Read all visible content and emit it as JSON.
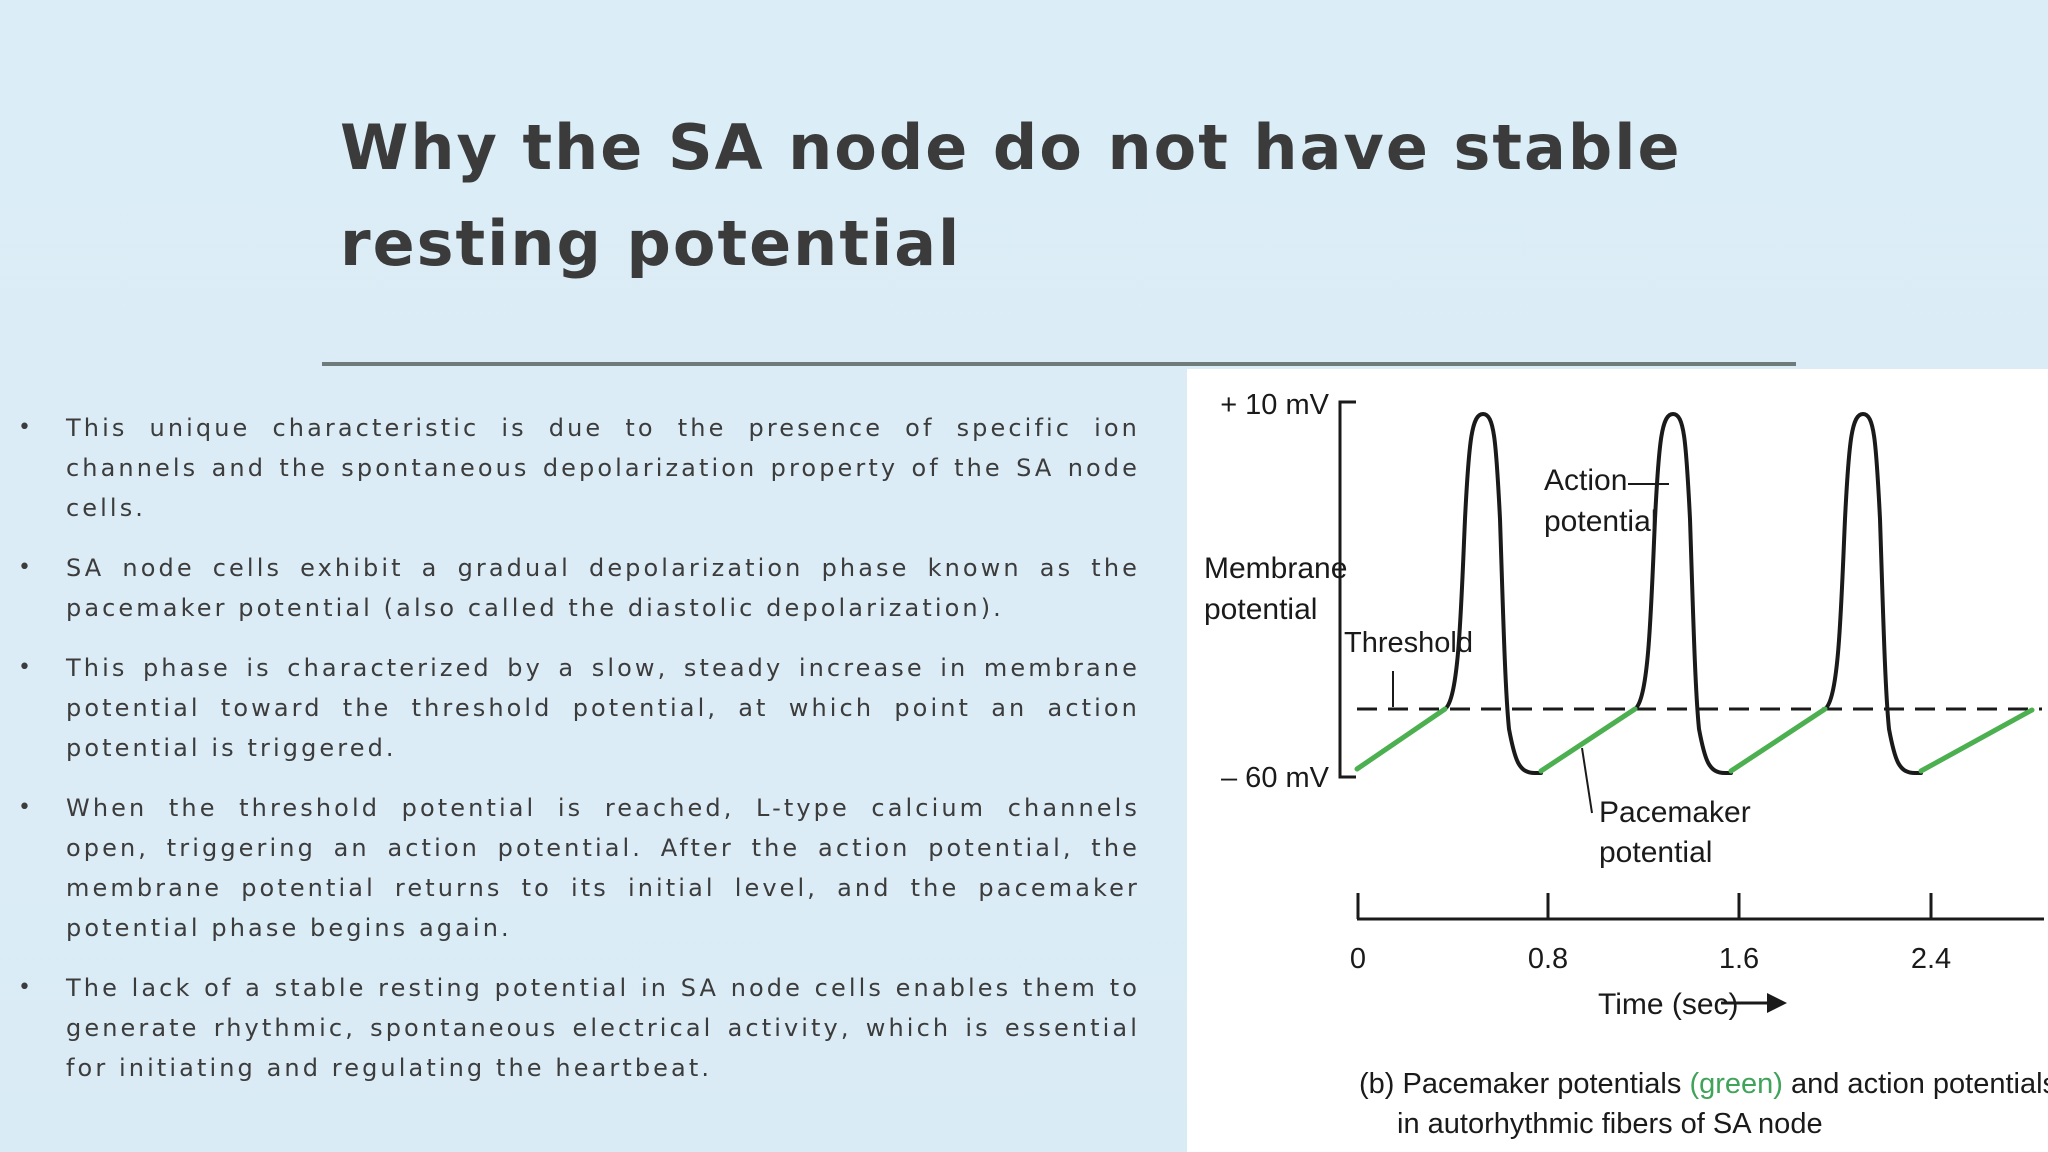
{
  "slide": {
    "title": "Why the SA node do not have stable resting potential",
    "bullets": [
      "This unique characteristic is due to the presence of specific ion channels and the spontaneous depolarization property of the SA node cells.",
      "SA node cells exhibit a gradual depolarization phase known as the pacemaker potential (also called the diastolic depolarization).",
      "This phase is characterized by a slow, steady increase in membrane potential toward the threshold potential, at which point an action potential is triggered.",
      "When the threshold potential is reached, L-type calcium channels open, triggering an action potential. After the action potential, the membrane potential returns to its initial level, and the pacemaker potential phase begins again.",
      "The lack of a stable resting potential in SA node cells enables them to generate rhythmic, spontaneous electrical activity, which is essential for initiating and regulating the heartbeat."
    ],
    "bullet_symbol": "•"
  },
  "figure": {
    "y_top_label": "+ 10 mV",
    "y_bottom_label": "– 60 mV",
    "y_axis_label_line1": "Membrane",
    "y_axis_label_line2": "potential",
    "threshold_label": "Threshold",
    "action_label_line1": "Action",
    "action_label_line2": "potential",
    "pacemaker_label_line1": "Pacemaker",
    "pacemaker_label_line2": "potential",
    "x_ticks": [
      "0",
      "0.8",
      "1.6",
      "2.4"
    ],
    "x_axis_label": "Time (sec)",
    "caption_prefix": "(b) Pacemaker potentials ",
    "caption_green": "(green)",
    "caption_suffix": " and action potentials (black)",
    "caption_line2": "in autorhythmic fibers of SA node",
    "colors": {
      "pacemaker": "#4caf50",
      "trace": "#1a1a1a",
      "caption_green": "#3fa35a"
    }
  }
}
